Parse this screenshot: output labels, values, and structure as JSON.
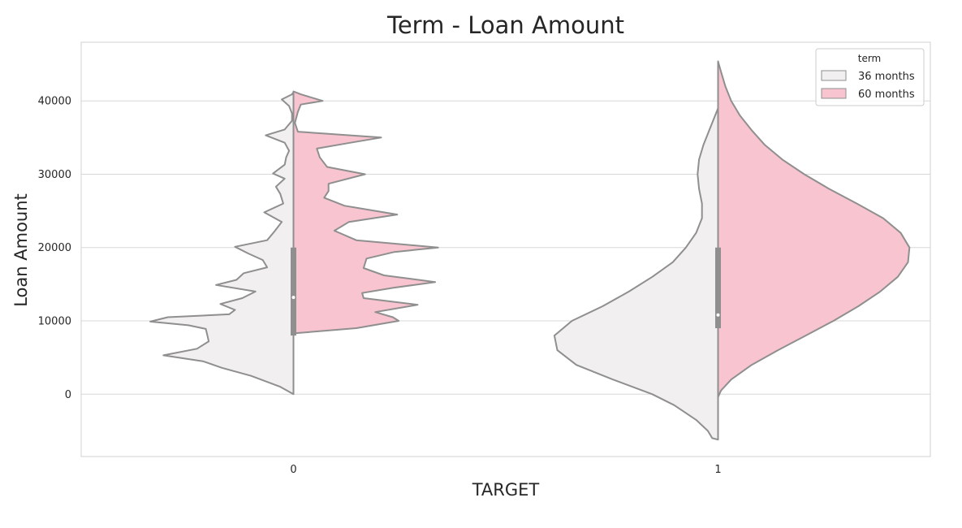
{
  "chart_data": {
    "type": "violin",
    "title": "Term - Loan Amount",
    "xlabel": "TARGET",
    "ylabel": "Loan Amount",
    "categories": [
      "0",
      "1"
    ],
    "y_ticks": [
      0,
      10000,
      20000,
      30000,
      40000
    ],
    "ylim": [
      -8500,
      48000
    ],
    "split": true,
    "grid": true,
    "legend": {
      "title": "term",
      "placement": "top-right",
      "entries": [
        {
          "label": "36 months",
          "color": "#f2eff1"
        },
        {
          "label": "60 months",
          "color": "#f7c4cf"
        }
      ]
    },
    "series": [
      {
        "name": "36 months",
        "color": "#f2eff1",
        "side": "left",
        "violins": [
          {
            "category": "0",
            "density_profile": [
              [
                0,
                0.0
              ],
              [
                1000,
                0.09
              ],
              [
                2500,
                0.29
              ],
              [
                3600,
                0.49
              ],
              [
                4500,
                0.62
              ],
              [
                5300,
                0.89
              ],
              [
                6200,
                0.66
              ],
              [
                7200,
                0.58
              ],
              [
                8100,
                0.59
              ],
              [
                8900,
                0.6
              ],
              [
                9400,
                0.72
              ],
              [
                9900,
                0.98
              ],
              [
                10500,
                0.86
              ],
              [
                10900,
                0.44
              ],
              [
                11500,
                0.4
              ],
              [
                12300,
                0.5
              ],
              [
                13100,
                0.35
              ],
              [
                14000,
                0.26
              ],
              [
                14900,
                0.53
              ],
              [
                15600,
                0.39
              ],
              [
                16500,
                0.34
              ],
              [
                17300,
                0.18
              ],
              [
                18300,
                0.21
              ],
              [
                19200,
                0.31
              ],
              [
                20100,
                0.4
              ],
              [
                21000,
                0.18
              ],
              [
                22200,
                0.13
              ],
              [
                23500,
                0.08
              ],
              [
                24800,
                0.2
              ],
              [
                26000,
                0.07
              ],
              [
                27300,
                0.09
              ],
              [
                28300,
                0.12
              ],
              [
                29400,
                0.06
              ],
              [
                30100,
                0.14
              ],
              [
                31300,
                0.06
              ],
              [
                32300,
                0.05
              ],
              [
                33200,
                0.03
              ],
              [
                34300,
                0.06
              ],
              [
                35300,
                0.19
              ],
              [
                36100,
                0.06
              ],
              [
                37300,
                0.01
              ],
              [
                38300,
                0.01
              ],
              [
                39300,
                0.03
              ],
              [
                40200,
                0.08
              ],
              [
                40900,
                0.01
              ],
              [
                41200,
                0.0
              ]
            ],
            "box": {
              "q1": 8000,
              "median": 13200,
              "q3": 20000
            }
          },
          {
            "category": "1",
            "density_profile": [
              [
                -6200,
                0.0
              ],
              [
                -6000,
                0.04
              ],
              [
                -5000,
                0.07
              ],
              [
                -3500,
                0.15
              ],
              [
                -1500,
                0.3
              ],
              [
                0,
                0.45
              ],
              [
                2000,
                0.72
              ],
              [
                4000,
                0.97
              ],
              [
                6000,
                1.1
              ],
              [
                8000,
                1.12
              ],
              [
                10000,
                1.0
              ],
              [
                12000,
                0.79
              ],
              [
                14000,
                0.61
              ],
              [
                16000,
                0.45
              ],
              [
                18000,
                0.31
              ],
              [
                20000,
                0.22
              ],
              [
                22000,
                0.15
              ],
              [
                24000,
                0.11
              ],
              [
                26000,
                0.11
              ],
              [
                28000,
                0.13
              ],
              [
                30000,
                0.14
              ],
              [
                32000,
                0.13
              ],
              [
                34000,
                0.1
              ],
              [
                36000,
                0.06
              ],
              [
                38000,
                0.02
              ],
              [
                39000,
                0.0
              ]
            ],
            "box": {
              "q1": 9000,
              "median": 10800,
              "q3": 20000
            }
          }
        ]
      },
      {
        "name": "60 months",
        "color": "#f7c4cf",
        "side": "right",
        "violins": [
          {
            "category": "0",
            "density_profile": [
              [
                8300,
                0.0
              ],
              [
                9000,
                0.43
              ],
              [
                10000,
                0.72
              ],
              [
                10500,
                0.68
              ],
              [
                11200,
                0.56
              ],
              [
                12200,
                0.85
              ],
              [
                13100,
                0.48
              ],
              [
                13800,
                0.47
              ],
              [
                14500,
                0.68
              ],
              [
                15300,
                0.97
              ],
              [
                16200,
                0.62
              ],
              [
                17200,
                0.48
              ],
              [
                18500,
                0.5
              ],
              [
                19400,
                0.69
              ],
              [
                20000,
                0.99
              ],
              [
                21000,
                0.43
              ],
              [
                22300,
                0.28
              ],
              [
                23500,
                0.38
              ],
              [
                24500,
                0.71
              ],
              [
                25700,
                0.35
              ],
              [
                26800,
                0.21
              ],
              [
                27700,
                0.24
              ],
              [
                28700,
                0.24
              ],
              [
                30000,
                0.49
              ],
              [
                31000,
                0.23
              ],
              [
                32300,
                0.18
              ],
              [
                33500,
                0.16
              ],
              [
                34300,
                0.39
              ],
              [
                35000,
                0.6
              ],
              [
                35800,
                0.03
              ],
              [
                37000,
                0.01
              ],
              [
                38500,
                0.03
              ],
              [
                39500,
                0.05
              ],
              [
                40000,
                0.2
              ],
              [
                40900,
                0.05
              ],
              [
                41300,
                0.0
              ]
            ],
            "box": {
              "q1": 8300,
              "median": 13200,
              "q3": 20000
            }
          },
          {
            "category": "1",
            "density_profile": [
              [
                -400,
                0.0
              ],
              [
                500,
                0.02
              ],
              [
                2000,
                0.09
              ],
              [
                4000,
                0.23
              ],
              [
                6000,
                0.41
              ],
              [
                8000,
                0.6
              ],
              [
                10000,
                0.79
              ],
              [
                12000,
                0.96
              ],
              [
                14000,
                1.11
              ],
              [
                16000,
                1.23
              ],
              [
                18000,
                1.3
              ],
              [
                20000,
                1.31
              ],
              [
                22000,
                1.25
              ],
              [
                24000,
                1.13
              ],
              [
                26000,
                0.95
              ],
              [
                28000,
                0.76
              ],
              [
                30000,
                0.59
              ],
              [
                32000,
                0.44
              ],
              [
                34000,
                0.32
              ],
              [
                36000,
                0.23
              ],
              [
                38000,
                0.15
              ],
              [
                40000,
                0.09
              ],
              [
                42000,
                0.05
              ],
              [
                44000,
                0.02
              ],
              [
                45400,
                0.0
              ]
            ],
            "box": {
              "q1": 9000,
              "median": 10800,
              "q3": 20000
            }
          }
        ]
      }
    ]
  }
}
